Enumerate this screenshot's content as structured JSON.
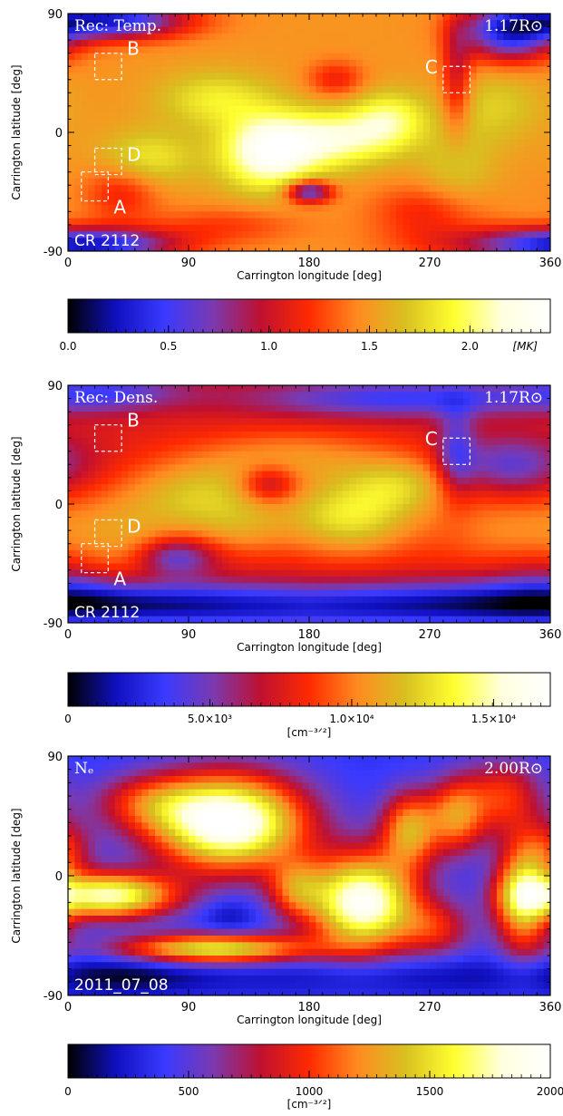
{
  "chart_data": [
    {
      "type": "heatmap",
      "panel": "temperature",
      "top_left_label": "Rec: Temp.",
      "top_right_label": "1.17R⊙",
      "bottom_left_label": "CR 2112",
      "xlabel": "Carrington longitude [deg]",
      "ylabel": "Carrington latitude [deg]",
      "xlim": [
        0,
        360
      ],
      "ylim": [
        -90,
        90
      ],
      "xticks": [
        0,
        90,
        180,
        270,
        360
      ],
      "yticks": [
        -90,
        0,
        90
      ],
      "colormap": [
        "#000000",
        "#1010c0",
        "#3a3aff",
        "#7a3ab0",
        "#c01030",
        "#ff2a00",
        "#ff8a20",
        "#d8c020",
        "#ffff30",
        "#ffffe0",
        "#ffffff"
      ],
      "colorbar": {
        "min": 0.0,
        "max": 2.4,
        "ticks": [
          {
            "value": 0.0,
            "label": "0.0"
          },
          {
            "value": 0.5,
            "label": "0.5"
          },
          {
            "value": 1.0,
            "label": "1.0"
          },
          {
            "value": 1.5,
            "label": "1.5"
          },
          {
            "value": 2.0,
            "label": "2.0"
          }
        ],
        "unit": "[MK]"
      },
      "boxes": [
        {
          "name": "A",
          "lon_range": [
            10,
            30
          ],
          "lat_range": [
            -52,
            -30
          ]
        },
        {
          "name": "B",
          "lon_range": [
            20,
            40
          ],
          "lat_range": [
            40,
            60
          ]
        },
        {
          "name": "C",
          "lon_range": [
            280,
            300
          ],
          "lat_range": [
            30,
            50
          ]
        },
        {
          "name": "D",
          "lon_range": [
            20,
            40
          ],
          "lat_range": [
            -32,
            -12
          ]
        }
      ]
    },
    {
      "type": "heatmap",
      "panel": "density",
      "top_left_label": "Rec: Dens.",
      "top_right_label": "1.17R⊙",
      "bottom_left_label": "CR 2112",
      "xlabel": "Carrington longitude [deg]",
      "ylabel": "Carrington latitude [deg]",
      "xlim": [
        0,
        360
      ],
      "ylim": [
        -90,
        90
      ],
      "xticks": [
        0,
        90,
        180,
        270,
        360
      ],
      "yticks": [
        -90,
        0,
        90
      ],
      "colormap": [
        "#000000",
        "#1010c0",
        "#3a3aff",
        "#7a3ab0",
        "#c01030",
        "#ff2a00",
        "#ff8a20",
        "#d8c020",
        "#ffff30",
        "#ffffe0",
        "#ffffff"
      ],
      "colorbar": {
        "min": 0,
        "max": 17000,
        "ticks": [
          {
            "value": 0,
            "label": "0"
          },
          {
            "value": 5000,
            "label": "5.0×10³"
          },
          {
            "value": 10000,
            "label": "1.0×10⁴"
          },
          {
            "value": 15000,
            "label": "1.5×10⁴"
          }
        ],
        "unit": "[cm⁻³ᐟ²]"
      },
      "boxes": [
        {
          "name": "A",
          "lon_range": [
            10,
            30
          ],
          "lat_range": [
            -52,
            -30
          ]
        },
        {
          "name": "B",
          "lon_range": [
            20,
            40
          ],
          "lat_range": [
            40,
            60
          ]
        },
        {
          "name": "C",
          "lon_range": [
            280,
            300
          ],
          "lat_range": [
            30,
            50
          ]
        },
        {
          "name": "D",
          "lon_range": [
            20,
            40
          ],
          "lat_range": [
            -32,
            -12
          ]
        }
      ]
    },
    {
      "type": "heatmap",
      "panel": "model-density",
      "top_left_label": "Nₑ",
      "top_right_label": "2.00R⊙",
      "bottom_left_label": "2011_07_08",
      "xlabel": "Carrington longitude [deg]",
      "ylabel": "Carrington latitude [deg]",
      "xlim": [
        0,
        360
      ],
      "ylim": [
        -90,
        90
      ],
      "xticks": [
        0,
        90,
        180,
        270,
        360
      ],
      "yticks": [
        -90,
        0,
        90
      ],
      "colormap": [
        "#000000",
        "#1010c0",
        "#3a3aff",
        "#7a3ab0",
        "#c01030",
        "#ff2a00",
        "#ff8a20",
        "#d8c020",
        "#ffff30",
        "#ffffe0",
        "#ffffff"
      ],
      "colorbar": {
        "min": 0,
        "max": 2000,
        "ticks": [
          {
            "value": 0,
            "label": "0"
          },
          {
            "value": 500,
            "label": "500"
          },
          {
            "value": 1000,
            "label": "1000"
          },
          {
            "value": 1500,
            "label": "1500"
          },
          {
            "value": 2000,
            "label": "2000"
          }
        ],
        "unit": "[cm⁻³ᐟ²]"
      },
      "boxes": []
    }
  ]
}
